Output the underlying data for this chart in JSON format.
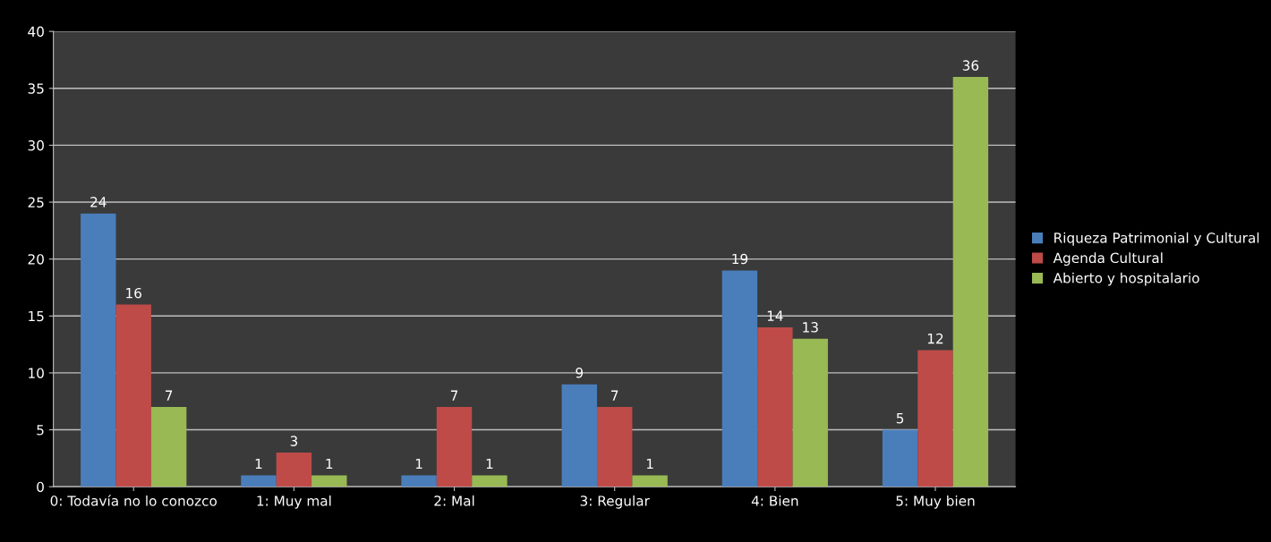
{
  "chart_data": {
    "type": "bar",
    "categories": [
      "0: Todavía no lo conozco",
      "1: Muy mal",
      "2: Mal",
      "3: Regular",
      "4: Bien",
      "5: Muy bien"
    ],
    "series": [
      {
        "name": "Riqueza Patrimonial y Cultural",
        "color": "#4a7ebb",
        "values": [
          24,
          1,
          1,
          9,
          19,
          5
        ]
      },
      {
        "name": "Agenda Cultural",
        "color": "#be4b48",
        "values": [
          16,
          3,
          7,
          7,
          14,
          12
        ]
      },
      {
        "name": "Abierto y hospitalario",
        "color": "#98b954",
        "values": [
          7,
          1,
          1,
          1,
          13,
          36
        ]
      }
    ],
    "ylim": [
      0,
      40
    ],
    "yticks": [
      0,
      5,
      10,
      15,
      20,
      25,
      30,
      35,
      40
    ],
    "grid": "y",
    "legend": "right",
    "data_labels": true
  }
}
